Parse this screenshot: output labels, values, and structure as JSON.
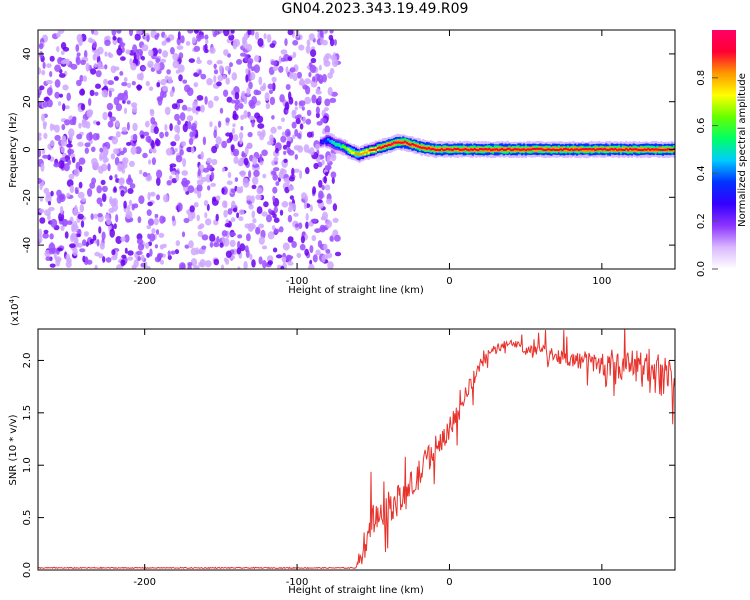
{
  "title": "GN04.2023.343.19.49.R09",
  "colors": {
    "snr_line": "#e8322c",
    "colormap": [
      "#ffffff",
      "#d9b8ff",
      "#8c33ff",
      "#3300ff",
      "#0033ff",
      "#00ccff",
      "#00ff66",
      "#66ff00",
      "#ffff00",
      "#ff9900",
      "#ff0033",
      "#ff0066"
    ]
  },
  "chart_data": [
    {
      "type": "heatmap",
      "xlabel": "Height of straight line (km)",
      "ylabel": "Frequency (Hz)",
      "xlim": [
        -270,
        148
      ],
      "ylim": [
        -50,
        50
      ],
      "xticks": [
        -200,
        -100,
        0,
        100
      ],
      "yticks": [
        -40,
        -20,
        0,
        20,
        40
      ],
      "noise_region": {
        "x": [
          -270,
          -73
        ],
        "y": [
          -50,
          50
        ],
        "amplitude": [
          0.05,
          0.2
        ]
      },
      "signal_track": {
        "x": [
          -85,
          -80,
          -75,
          -70,
          -65,
          -60,
          -55,
          -50,
          -45,
          -40,
          -35,
          -30,
          -25,
          -20,
          -10,
          0,
          20,
          40,
          60,
          80,
          100,
          120,
          148
        ],
        "y": [
          3,
          4,
          2,
          1,
          -1,
          -2,
          -1,
          0,
          1,
          2,
          3,
          3,
          2,
          1,
          0,
          0,
          0,
          0,
          0,
          0,
          0,
          0,
          0
        ],
        "amplitude": [
          0.3,
          0.45,
          0.55,
          0.6,
          0.75,
          0.8,
          0.85,
          0.9,
          0.92,
          0.95,
          0.95,
          0.95,
          0.95,
          0.95,
          0.95,
          0.95,
          0.95,
          0.95,
          0.95,
          0.95,
          0.95,
          0.95,
          0.95
        ]
      },
      "colorbar": {
        "label": "Normalized spectral amplitude",
        "range": [
          0,
          1
        ],
        "ticks": [
          "0.0",
          "0.2",
          "0.4",
          "0.6",
          "0.8"
        ]
      }
    },
    {
      "type": "line",
      "xlabel": "Height of straight line (km)",
      "ylabel": "SNR (10 * v/v)",
      "y_multiplier": "(x10",
      "y_multiplier_exp": "4",
      "y_multiplier_close": ")",
      "xlim": [
        -270,
        148
      ],
      "ylim": [
        0,
        23000
      ],
      "xticks": [
        -200,
        -100,
        0,
        100
      ],
      "ytick_labels": [
        "0.0",
        "0.5",
        "1.0",
        "1.5",
        "2.0"
      ],
      "series": [
        {
          "x": [
            -270,
            -200,
            -100,
            -62,
            -58,
            -55,
            -52,
            -50,
            -45,
            -40,
            -35,
            -30,
            -25,
            -20,
            -15,
            -10,
            -5,
            0,
            5,
            10,
            15,
            20,
            25,
            30,
            35,
            40,
            45,
            50,
            60,
            70,
            80,
            90,
            100,
            110,
            120,
            125,
            130,
            135,
            140,
            148
          ],
          "y": [
            200,
            200,
            200,
            200,
            1000,
            3000,
            4500,
            5000,
            5500,
            6000,
            6500,
            7000,
            8000,
            9000,
            10500,
            11500,
            12500,
            13500,
            15000,
            16500,
            18000,
            19500,
            20500,
            21000,
            21500,
            21500,
            21500,
            21000,
            21000,
            20500,
            20000,
            20000,
            19500,
            19500,
            19500,
            19500,
            19000,
            19000,
            18500,
            18500
          ],
          "noise": [
            50,
            50,
            50,
            50,
            600,
            1800,
            1500,
            1600,
            1500,
            1500,
            1500,
            1500,
            1500,
            1500,
            1400,
            1200,
            1100,
            1000,
            900,
            900,
            800,
            600,
            500,
            500,
            400,
            400,
            400,
            500,
            600,
            700,
            800,
            900,
            1000,
            1200,
            1500,
            1800,
            2200,
            2200,
            2000,
            2000
          ]
        }
      ]
    }
  ]
}
